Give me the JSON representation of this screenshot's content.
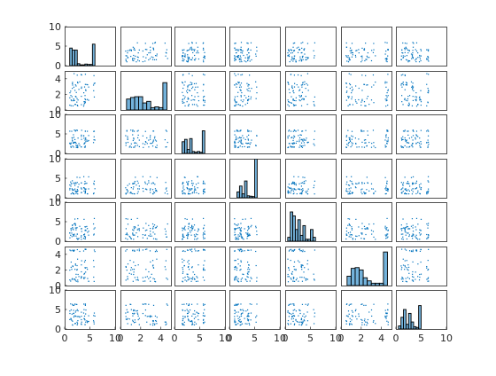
{
  "chart_data": {
    "type": "scatter",
    "title": "",
    "layout": "7x7 scatter-plot matrix (plotmatrix) with histograms on the diagonal",
    "variables": 7,
    "colors": {
      "scatter": "#0072bd",
      "histogram_fill": "#0072bd",
      "histogram_edge": "#000000",
      "axes": "#262626"
    },
    "grid": false,
    "legend": "none",
    "row_ylims": [
      [
        0,
        10
      ],
      [
        0,
        5
      ],
      [
        0,
        10
      ],
      [
        0,
        10
      ],
      [
        0,
        10
      ],
      [
        0,
        5
      ],
      [
        0,
        10
      ]
    ],
    "row_yticks": [
      [
        "0",
        "5",
        "10"
      ],
      [
        "0",
        "2",
        "4"
      ],
      [
        "0",
        "5",
        "10"
      ],
      [
        "0",
        "5",
        "10"
      ],
      [
        "0",
        "5",
        "10"
      ],
      [
        "0",
        "2",
        "4"
      ],
      [
        "0",
        "5",
        "10"
      ]
    ],
    "col_xlims": [
      [
        0,
        10
      ],
      [
        0,
        5
      ],
      [
        0,
        10
      ],
      [
        0,
        10
      ],
      [
        0,
        10
      ],
      [
        0,
        5
      ],
      [
        0,
        10
      ]
    ],
    "col_xticks": [
      [
        "0",
        "5",
        "10"
      ],
      [
        "0",
        "2",
        "4"
      ],
      [
        "0",
        "5",
        "10"
      ],
      [
        "0",
        "5",
        "10"
      ],
      [
        "0",
        "5",
        "10"
      ],
      [
        "0",
        "2",
        "4"
      ],
      [
        "0",
        "5",
        "10"
      ]
    ],
    "variable_ranges": [
      [
        1,
        6
      ],
      [
        0.5,
        4.7
      ],
      [
        1.5,
        6
      ],
      [
        1,
        5.5
      ],
      [
        0.5,
        6
      ],
      [
        0.5,
        4.7
      ],
      [
        1,
        6.5
      ]
    ],
    "diagonal_histograms": [
      {
        "variable": 1,
        "bin_edges": [
          1.0,
          1.5,
          2.0,
          2.5,
          3.0,
          3.5,
          4.0,
          4.5,
          5.0,
          5.5,
          6.0
        ],
        "counts": [
          4.5,
          4.0,
          4.0,
          0.5,
          0.2,
          0.2,
          0.4,
          0.3,
          0.3,
          5.5
        ]
      },
      {
        "variable": 2,
        "bin_edges": [
          0.6,
          1.0,
          1.4,
          1.8,
          2.2,
          2.6,
          3.0,
          3.4,
          3.8,
          4.2,
          4.6
        ],
        "counts": [
          1.4,
          1.6,
          1.7,
          1.7,
          0.9,
          1.1,
          0.3,
          0.4,
          0.3,
          3.5
        ]
      },
      {
        "variable": 3,
        "bin_edges": [
          1.5,
          2.0,
          2.5,
          3.0,
          3.5,
          4.0,
          4.5,
          5.0,
          5.5,
          6.0
        ],
        "counts": [
          3.0,
          3.6,
          1.0,
          3.8,
          0.5,
          0.3,
          0.5,
          0.3,
          5.8
        ]
      },
      {
        "variable": 4,
        "bin_edges": [
          1.5,
          2.0,
          2.5,
          3.0,
          3.5,
          4.0,
          4.5,
          5.0,
          5.5
        ],
        "counts": [
          1.5,
          3.0,
          1.0,
          4.3,
          0.5,
          0.4,
          0.3,
          13.0
        ]
      },
      {
        "variable": 5,
        "bin_edges": [
          0.5,
          1.0,
          1.5,
          2.0,
          2.5,
          3.0,
          3.5,
          4.0,
          4.5,
          5.0,
          5.5,
          6.0
        ],
        "counts": [
          1.0,
          7.5,
          6.5,
          3.0,
          5.5,
          1.5,
          4.0,
          0.5,
          0.5,
          3.0,
          1.0
        ]
      },
      {
        "variable": 6,
        "bin_edges": [
          0.6,
          1.0,
          1.4,
          1.8,
          2.2,
          2.6,
          3.0,
          3.4,
          3.8,
          4.2,
          4.6
        ],
        "counts": [
          1.2,
          2.2,
          2.3,
          2.0,
          1.0,
          0.6,
          0.3,
          0.3,
          0.3,
          4.3
        ]
      },
      {
        "variable": 7,
        "bin_edges": [
          0.5,
          1.0,
          1.5,
          2.0,
          2.5,
          3.0,
          3.5,
          4.0,
          4.5,
          5.0
        ],
        "counts": [
          0.8,
          3.0,
          5.0,
          1.2,
          4.0,
          1.8,
          0.6,
          0.4,
          6.0
        ]
      }
    ]
  }
}
